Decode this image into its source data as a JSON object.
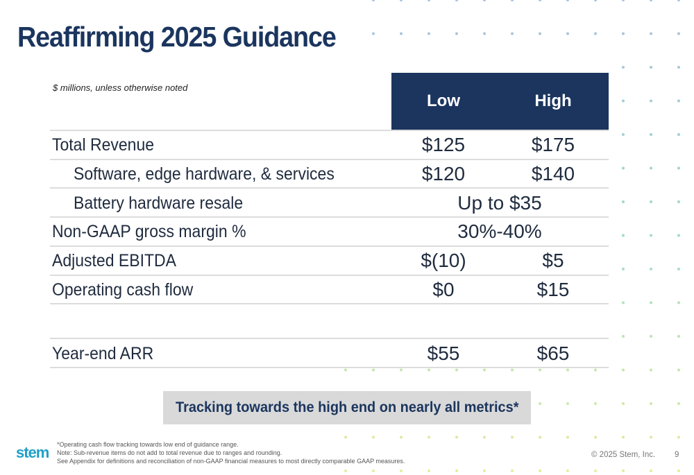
{
  "title": "Reaffirming 2025 Guidance",
  "units_note": "$ millions, unless otherwise noted",
  "table": {
    "headers": {
      "low": "Low",
      "high": "High"
    },
    "rows": [
      {
        "label": "Total Revenue",
        "low": "$125",
        "high": "$175"
      },
      {
        "label": "Software, edge hardware, & services",
        "low": "$120",
        "high": "$140"
      },
      {
        "label": "Battery hardware resale",
        "span": "Up to $35"
      },
      {
        "label": "Non-GAAP gross margin %",
        "span": "30%-40%"
      },
      {
        "label": "Adjusted EBITDA",
        "low": "$(10)",
        "high": "$5"
      },
      {
        "label": "Operating cash flow",
        "low": "$0",
        "high": "$15"
      },
      {
        "label": "Year-end ARR",
        "low": "$55",
        "high": "$65"
      }
    ]
  },
  "banner": "Tracking towards the high end on nearly all metrics*",
  "footnotes": [
    "*Operating cash flow tracking towards low end of guidance range.",
    "Note: Sub-revenue items do not add to total revenue due to ranges and rounding.",
    "See Appendix for definitions and reconciliation of non-GAAP financial measures to most directly comparable GAAP measures."
  ],
  "logo": "stem",
  "copyright": "© 2025 Stem, Inc.",
  "page_number": "9",
  "colors": {
    "navy": "#1b355e",
    "banner_bg": "#d9d9d9",
    "logo": "#1fa0c8"
  }
}
